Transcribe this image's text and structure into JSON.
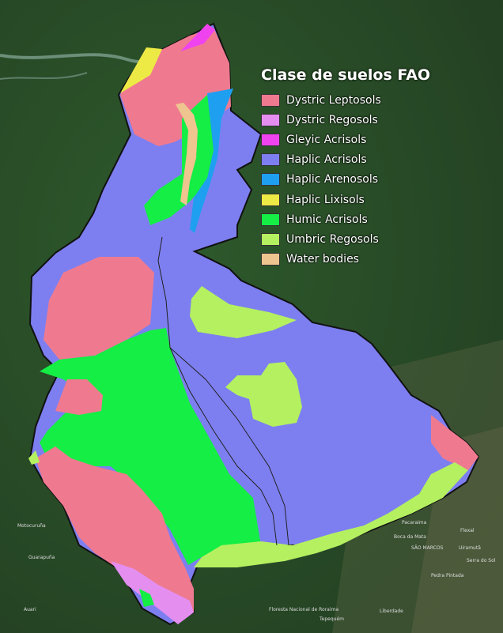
{
  "legend": {
    "title": "Clase de suelos FAO",
    "items": [
      {
        "label": "Dystric Leptosols",
        "color": "#ef7a8f"
      },
      {
        "label": "Dystric Regosols",
        "color": "#e48ef0"
      },
      {
        "label": "Gleyic Acrisols",
        "color": "#f043f0"
      },
      {
        "label": "Haplic Acrisols",
        "color": "#7d7ff0"
      },
      {
        "label": "Haplic Arenosols",
        "color": "#1f9ff0"
      },
      {
        "label": "Haplic Lixisols",
        "color": "#eeea45"
      },
      {
        "label": "Humic Acrisols",
        "color": "#14ee45"
      },
      {
        "label": "Umbric Regosols",
        "color": "#b4f060"
      },
      {
        "label": "Water bodies",
        "color": "#eec48f"
      }
    ]
  },
  "places": [
    {
      "label": "Motocuruña"
    },
    {
      "label": "Guarapuña"
    },
    {
      "label": "Auari"
    },
    {
      "label": "Pacaraima"
    },
    {
      "label": "Boca da Mata"
    },
    {
      "label": "SÃO MARCOS"
    },
    {
      "label": "Serra do Sol"
    },
    {
      "label": "Flexal"
    },
    {
      "label": "Pedra Pintada"
    },
    {
      "label": "Floresta Nacional de Roraima"
    },
    {
      "label": "Tepequém"
    },
    {
      "label": "Uiramutã"
    },
    {
      "label": "Liberdade"
    }
  ]
}
